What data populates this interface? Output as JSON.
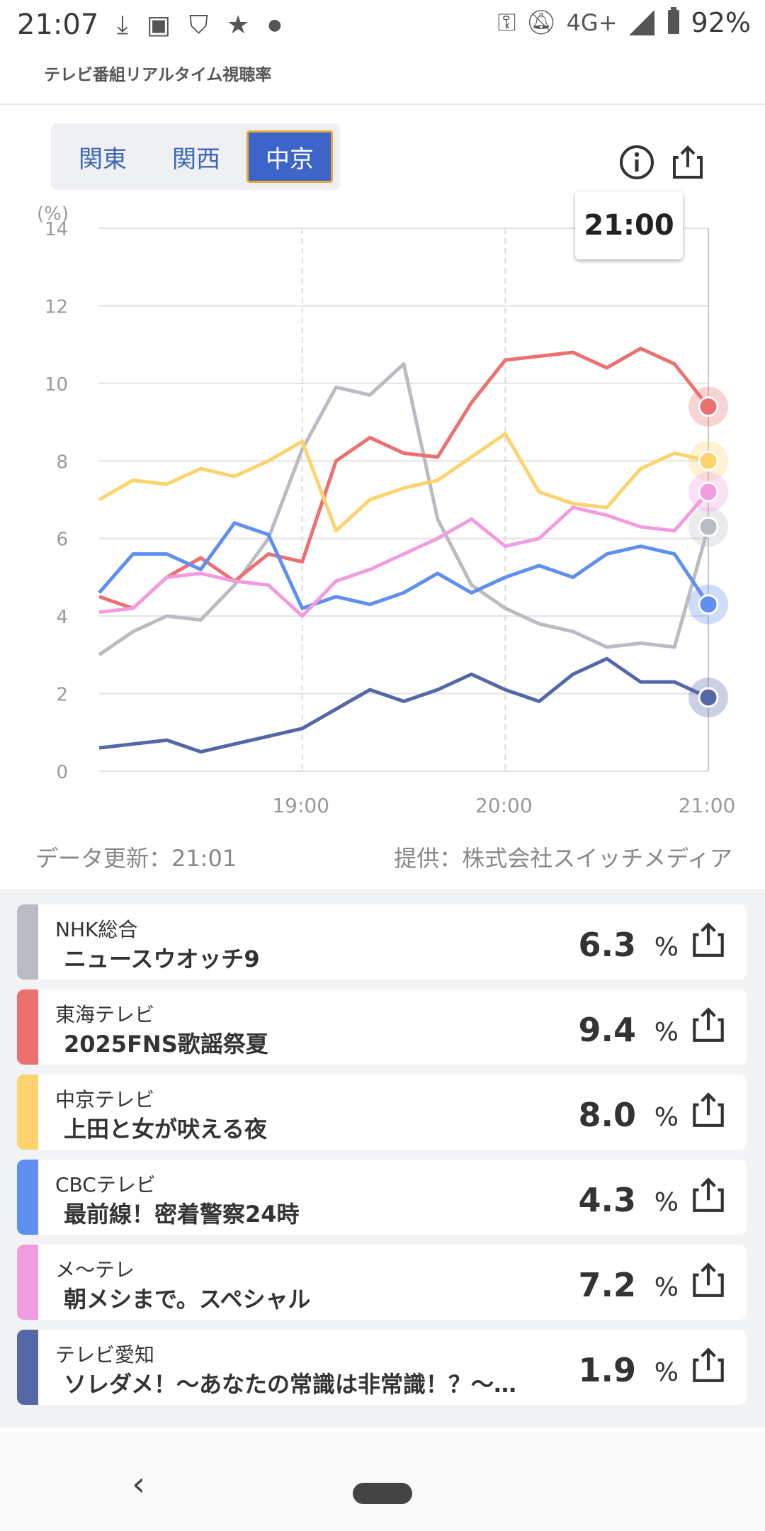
{
  "status": {
    "time": "21:07",
    "network": "4G+",
    "battery": "92%",
    "icons": [
      "download-done-icon",
      "image-icon",
      "shield-icon",
      "star-icon",
      "dot-icon",
      "key-icon",
      "bell-off-icon",
      "signal-icon",
      "battery-icon"
    ]
  },
  "header": {
    "subtitle": "テレビ番組リアルタイム視聴率"
  },
  "tabs": [
    {
      "label": "関東",
      "selected": false
    },
    {
      "label": "関西",
      "selected": false
    },
    {
      "label": "中京",
      "selected": true
    }
  ],
  "tooltip": {
    "time": "21:00"
  },
  "meta": {
    "updated": "データ更新：21:01",
    "provider": "提供：株式会社スイッチメディア"
  },
  "channels": [
    {
      "channel": "NHK総合",
      "program": "ニュースウオッチ9",
      "rating": "6.3",
      "unit": "%",
      "color": "#b9bcc3"
    },
    {
      "channel": "東海テレビ",
      "program": "2025FNS歌謡祭夏",
      "rating": "9.4",
      "unit": "%",
      "color": "#ec7070"
    },
    {
      "channel": "中京テレビ",
      "program": "上田と女が吠える夜",
      "rating": "8.0",
      "unit": "%",
      "color": "#fdd36d"
    },
    {
      "channel": "CBCテレビ",
      "program": "最前線！密着警察24時",
      "rating": "4.3",
      "unit": "%",
      "color": "#5f8ff0"
    },
    {
      "channel": "メ～テレ",
      "program": "朝メシまで。スペシャル",
      "rating": "7.2",
      "unit": "%",
      "color": "#f29ce0"
    },
    {
      "channel": "テレビ愛知",
      "program": "ソレダメ！～あなたの常識は非常識！？～…",
      "rating": "1.9",
      "unit": "%",
      "color": "#5468a8"
    }
  ],
  "chart_data": {
    "type": "line",
    "ylabel": "(%)",
    "ylim": [
      0,
      14
    ],
    "yticks": [
      "0",
      "2",
      "4",
      "6",
      "8",
      "10",
      "12",
      "14"
    ],
    "xticks": [
      "19:00",
      "20:00",
      "21:00"
    ],
    "x": [
      "18:00",
      "18:10",
      "18:20",
      "18:30",
      "18:40",
      "18:50",
      "19:00",
      "19:10",
      "19:20",
      "19:30",
      "19:40",
      "19:50",
      "20:00",
      "20:10",
      "20:20",
      "20:30",
      "20:40",
      "20:50",
      "21:00"
    ],
    "series": [
      {
        "name": "NHK総合",
        "color": "#b9bcc3",
        "values": [
          3.0,
          3.6,
          4.0,
          3.9,
          4.8,
          6.0,
          8.3,
          9.9,
          9.7,
          10.5,
          6.5,
          4.8,
          4.2,
          3.8,
          3.6,
          3.2,
          3.3,
          3.2,
          6.3
        ]
      },
      {
        "name": "東海テレビ",
        "color": "#ec7070",
        "values": [
          4.5,
          4.2,
          5.0,
          5.5,
          4.9,
          5.6,
          5.4,
          8.0,
          8.6,
          8.2,
          8.1,
          9.5,
          10.6,
          10.7,
          10.8,
          10.4,
          10.9,
          10.5,
          9.4
        ]
      },
      {
        "name": "中京テレビ",
        "color": "#fdd36d",
        "values": [
          7.0,
          7.5,
          7.4,
          7.8,
          7.6,
          8.0,
          8.5,
          6.2,
          7.0,
          7.3,
          7.5,
          8.1,
          8.7,
          7.2,
          6.9,
          6.8,
          7.8,
          8.2,
          8.0
        ]
      },
      {
        "name": "CBCテレビ",
        "color": "#5f8ff0",
        "values": [
          4.6,
          5.6,
          5.6,
          5.2,
          6.4,
          6.1,
          4.2,
          4.5,
          4.3,
          4.6,
          5.1,
          4.6,
          5.0,
          5.3,
          5.0,
          5.6,
          5.8,
          5.6,
          4.3
        ]
      },
      {
        "name": "メ～テレ",
        "color": "#f29ce0",
        "values": [
          4.1,
          4.2,
          5.0,
          5.1,
          4.9,
          4.8,
          4.0,
          4.9,
          5.2,
          5.6,
          6.0,
          6.5,
          5.8,
          6.0,
          6.8,
          6.6,
          6.3,
          6.2,
          7.2
        ]
      },
      {
        "name": "テレビ愛知",
        "color": "#5468a8",
        "values": [
          0.6,
          0.7,
          0.8,
          0.5,
          0.7,
          0.9,
          1.1,
          1.6,
          2.1,
          1.8,
          2.1,
          2.5,
          2.1,
          1.8,
          2.5,
          2.9,
          2.3,
          2.3,
          1.9
        ]
      }
    ]
  }
}
